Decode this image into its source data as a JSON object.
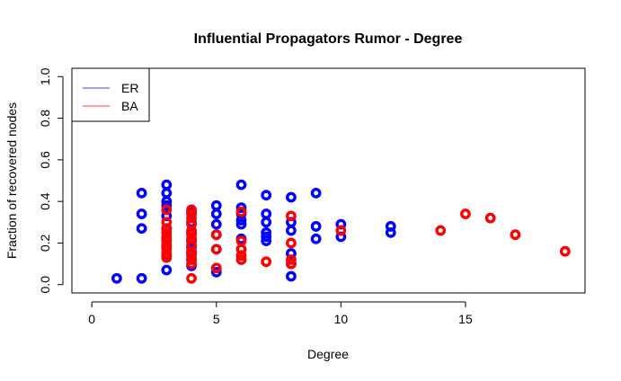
{
  "chart_data": {
    "type": "scatter",
    "title": "Influential Propagators Rumor - Degree",
    "xlabel": "Degree",
    "ylabel": "Fraction of recovered nodes",
    "xlim": [
      -0.8,
      19.8
    ],
    "ylim": [
      -0.04,
      1.04
    ],
    "x_ticks": [
      0,
      5,
      10,
      15
    ],
    "y_ticks": [
      0.0,
      0.2,
      0.4,
      0.6,
      0.8,
      1.0
    ],
    "x_tick_labels": [
      "0",
      "5",
      "10",
      "15"
    ],
    "y_tick_labels": [
      "0.0",
      "0.2",
      "0.4",
      "0.6",
      "0.8",
      "1.0"
    ],
    "grid": false,
    "legend_position": "top-left",
    "series": [
      {
        "name": "ER",
        "color": "#0000FF",
        "marker": "hollow-thick-circle",
        "points": [
          [
            1,
            0.03
          ],
          [
            2,
            0.44
          ],
          [
            2,
            0.34
          ],
          [
            2,
            0.27
          ],
          [
            2,
            0.03
          ],
          [
            3,
            0.48
          ],
          [
            3,
            0.44
          ],
          [
            3,
            0.4
          ],
          [
            3,
            0.38
          ],
          [
            3,
            0.33
          ],
          [
            3,
            0.27
          ],
          [
            3,
            0.22
          ],
          [
            3,
            0.18
          ],
          [
            3,
            0.14
          ],
          [
            3,
            0.07
          ],
          [
            4,
            0.35
          ],
          [
            4,
            0.3
          ],
          [
            4,
            0.25
          ],
          [
            4,
            0.21
          ],
          [
            4,
            0.18
          ],
          [
            4,
            0.15
          ],
          [
            4,
            0.12
          ],
          [
            4,
            0.09
          ],
          [
            5,
            0.38
          ],
          [
            5,
            0.34
          ],
          [
            5,
            0.29
          ],
          [
            5,
            0.24
          ],
          [
            5,
            0.17
          ],
          [
            5,
            0.06
          ],
          [
            6,
            0.48
          ],
          [
            6,
            0.37
          ],
          [
            6,
            0.34
          ],
          [
            6,
            0.31
          ],
          [
            6,
            0.29
          ],
          [
            6,
            0.22
          ],
          [
            6,
            0.17
          ],
          [
            7,
            0.43
          ],
          [
            7,
            0.34
          ],
          [
            7,
            0.3
          ],
          [
            7,
            0.25
          ],
          [
            7,
            0.23
          ],
          [
            7,
            0.21
          ],
          [
            8,
            0.42
          ],
          [
            8,
            0.3
          ],
          [
            8,
            0.26
          ],
          [
            8,
            0.15
          ],
          [
            8,
            0.1
          ],
          [
            8,
            0.04
          ],
          [
            9,
            0.44
          ],
          [
            9,
            0.28
          ],
          [
            9,
            0.22
          ],
          [
            10,
            0.29
          ],
          [
            10,
            0.23
          ],
          [
            12,
            0.28
          ],
          [
            12,
            0.25
          ]
        ]
      },
      {
        "name": "BA",
        "color": "#FF0000",
        "marker": "hollow-thick-circle",
        "points": [
          [
            3,
            0.36
          ],
          [
            3,
            0.3
          ],
          [
            3,
            0.27
          ],
          [
            3,
            0.25
          ],
          [
            3,
            0.23
          ],
          [
            3,
            0.21
          ],
          [
            3,
            0.19
          ],
          [
            3,
            0.17
          ],
          [
            3,
            0.15
          ],
          [
            3,
            0.13
          ],
          [
            4,
            0.36
          ],
          [
            4,
            0.34
          ],
          [
            4,
            0.32
          ],
          [
            4,
            0.29
          ],
          [
            4,
            0.26
          ],
          [
            4,
            0.24
          ],
          [
            4,
            0.22
          ],
          [
            4,
            0.19
          ],
          [
            4,
            0.16
          ],
          [
            4,
            0.14
          ],
          [
            4,
            0.12
          ],
          [
            4,
            0.1
          ],
          [
            4,
            0.03
          ],
          [
            5,
            0.24
          ],
          [
            5,
            0.17
          ],
          [
            5,
            0.08
          ],
          [
            6,
            0.35
          ],
          [
            6,
            0.21
          ],
          [
            6,
            0.17
          ],
          [
            6,
            0.14
          ],
          [
            6,
            0.12
          ],
          [
            7,
            0.11
          ],
          [
            8,
            0.33
          ],
          [
            8,
            0.2
          ],
          [
            8,
            0.12
          ],
          [
            8,
            0.1
          ],
          [
            10,
            0.26
          ],
          [
            14,
            0.26
          ],
          [
            15,
            0.34
          ],
          [
            16,
            0.32
          ],
          [
            17,
            0.24
          ],
          [
            19,
            0.16
          ]
        ]
      }
    ]
  }
}
